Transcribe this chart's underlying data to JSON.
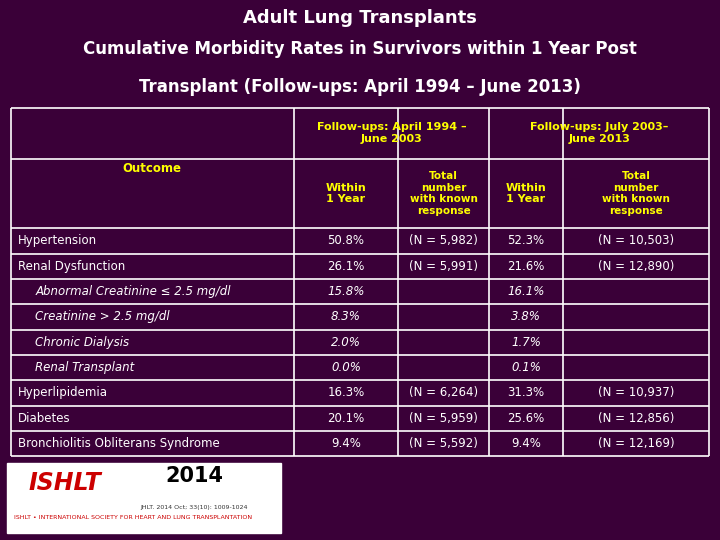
{
  "title_line1": "Adult Lung Transplants",
  "title_line2": "Cumulative Morbidity Rates in Survivors within 1 Year Post",
  "title_line3": "Transplant (Follow-ups: April 1994 – June 2013)",
  "bg_color": "#3a0038",
  "table_bg_color": "#000000",
  "header_text_color": "#ffff00",
  "body_text_color": "#ffffff",
  "grid_color": "#ffffff",
  "col_header1": "Follow-ups: April 1994 –\nJune 2003",
  "col_header2": "Follow-ups: July 2003–\nJune 2013",
  "sub_header_within": "Within\n1 Year",
  "sub_header_total": "Total\nnumber\nwith known\nresponse",
  "outcome_label": "Outcome",
  "rows": [
    {
      "label": "Hypertension",
      "indent": false,
      "italic": false,
      "v1": "50.8%",
      "n1": "(N = 5,982)",
      "v2": "52.3%",
      "n2": "(N = 10,503)"
    },
    {
      "label": "Renal Dysfunction",
      "indent": false,
      "italic": false,
      "v1": "26.1%",
      "n1": "(N = 5,991)",
      "v2": "21.6%",
      "n2": "(N = 12,890)"
    },
    {
      "label": "Abnormal Creatinine ≤ 2.5 mg/dl",
      "indent": true,
      "italic": true,
      "v1": "15.8%",
      "n1": "",
      "v2": "16.1%",
      "n2": ""
    },
    {
      "label": "Creatinine > 2.5 mg/dl",
      "indent": true,
      "italic": true,
      "v1": "8.3%",
      "n1": "",
      "v2": "3.8%",
      "n2": ""
    },
    {
      "label": "Chronic Dialysis",
      "indent": true,
      "italic": true,
      "v1": "2.0%",
      "n1": "",
      "v2": "1.7%",
      "n2": ""
    },
    {
      "label": "Renal Transplant",
      "indent": true,
      "italic": true,
      "v1": "0.0%",
      "n1": "",
      "v2": "0.1%",
      "n2": ""
    },
    {
      "label": "Hyperlipidemia",
      "indent": false,
      "italic": false,
      "v1": "16.3%",
      "n1": "(N = 6,264)",
      "v2": "31.3%",
      "n2": "(N = 10,937)"
    },
    {
      "label": "Diabetes",
      "indent": false,
      "italic": false,
      "v1": "20.1%",
      "n1": "(N = 5,959)",
      "v2": "25.6%",
      "n2": "(N = 12,856)"
    },
    {
      "label": "Bronchiolitis Obliterans Syndrome",
      "indent": false,
      "italic": false,
      "v1": "9.4%",
      "n1": "(N = 5,592)",
      "v2": "9.4%",
      "n2": "(N = 12,169)"
    }
  ],
  "title_fontsize": 13,
  "header_fontsize": 8,
  "body_fontsize": 8.5
}
